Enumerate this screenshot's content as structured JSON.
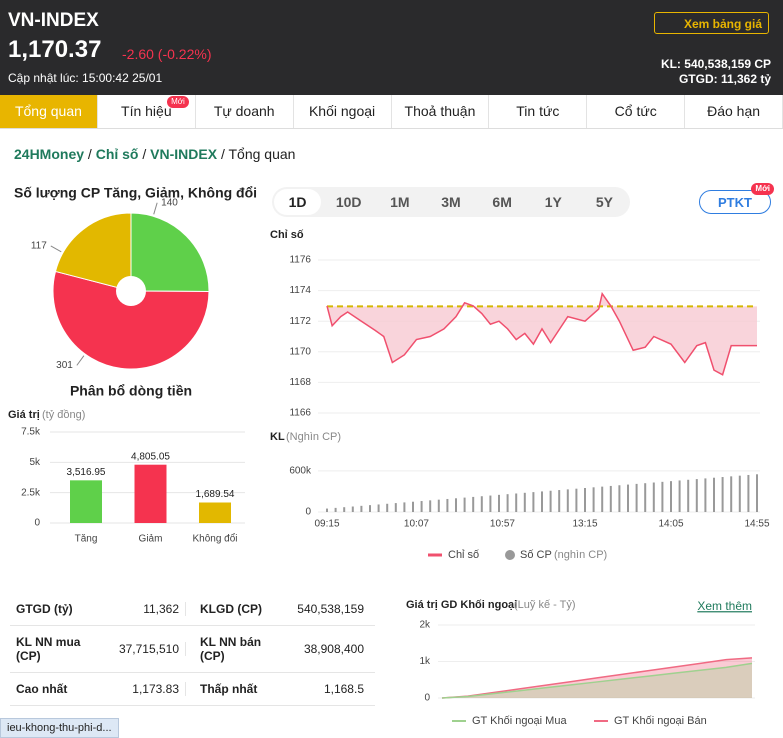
{
  "header": {
    "title": "VN-INDEX",
    "price": "1,170.37",
    "change": "-2.60 (-0.22%)",
    "updated": "Cập nhật lúc: 15:00:42 25/01",
    "button": "Xem bảng giá",
    "volume": "KL: 540,538,159 CP",
    "value": "GTGD: 11,362 tỷ"
  },
  "tabs": [
    "Tổng quan",
    "Tín hiệu",
    "Tự doanh",
    "Khối ngoại",
    "Thoả thuận",
    "Tin tức",
    "Cổ tức",
    "Đáo hạn"
  ],
  "badge": "Mới",
  "breadcrumb": [
    "24HMoney",
    "Chỉ số",
    "VN-INDEX",
    "Tổng quan"
  ],
  "pie": {
    "type": "pie",
    "title": "Số lượng CP Tăng, Giảm, Không đổi",
    "values": [
      140,
      301,
      117
    ],
    "colors": [
      "#5fd04a",
      "#f5334f",
      "#e2b800"
    ]
  },
  "flow": {
    "type": "bar",
    "title": "Phân bổ dòng tiền",
    "y_label": "Giá trị",
    "y_unit": "(tỷ đồng)",
    "categories": [
      "Tăng",
      "Giảm",
      "Không đổi"
    ],
    "values": [
      3516.95,
      4805.05,
      1689.54
    ],
    "value_labels": [
      "3,516.95",
      "4,805.05",
      "1,689.54"
    ],
    "colors": [
      "#5fd04a",
      "#f5334f",
      "#e2b800"
    ],
    "ylim": [
      0,
      7500
    ],
    "yticks": [
      0,
      {
        "value": 2500,
        "label": "2.5k"
      },
      {
        "value": 5000,
        "label": "5k"
      },
      {
        "value": 7500,
        "label": "7.5k"
      }
    ],
    "grid": true
  },
  "ranges": [
    "1D",
    "10D",
    "1M",
    "3M",
    "6M",
    "1Y",
    "5Y"
  ],
  "ptkt": "PTKT",
  "index_chart": {
    "type": "line",
    "y_label": "Chỉ số",
    "xlim": [
      0,
      250
    ],
    "xticks": [
      {
        "value": 0,
        "label": "09:15"
      },
      {
        "value": 52,
        "label": "10:07"
      },
      {
        "value": 102,
        "label": "10:57"
      },
      {
        "value": 150,
        "label": "13:15"
      },
      {
        "value": 200,
        "label": "14:05"
      },
      {
        "value": 250,
        "label": "14:55"
      }
    ],
    "ylim": [
      1166,
      1176
    ],
    "yticks": [
      1166,
      1168,
      1170,
      1172,
      1174,
      1176
    ],
    "grid": true,
    "reference": 1172.97,
    "reference_color": "#d4b800",
    "series": [
      {
        "name": "Chỉ số",
        "color": "#f0506e",
        "x": [
          0,
          3,
          8,
          12,
          20,
          28,
          33,
          38,
          45,
          52,
          60,
          68,
          75,
          80,
          85,
          90,
          95,
          100,
          105,
          110,
          115,
          120,
          125,
          130,
          140,
          150,
          158,
          160,
          165,
          170,
          178,
          185,
          190,
          200,
          208,
          215,
          220,
          225,
          230,
          235,
          250
        ],
        "values": [
          1173.0,
          1171.7,
          1172.3,
          1172.6,
          1172.0,
          1171.4,
          1171.0,
          1169.3,
          1169.8,
          1170.8,
          1171.0,
          1171.5,
          1172.3,
          1173.2,
          1173.0,
          1172.5,
          1171.8,
          1172.0,
          1171.5,
          1170.8,
          1171.2,
          1170.5,
          1171.5,
          1170.6,
          1172.3,
          1172.0,
          1172.8,
          1173.8,
          1173.0,
          1172.0,
          1170.1,
          1170.3,
          1171.0,
          1170.5,
          1169.3,
          1170.4,
          1170.6,
          1168.8,
          1168.5,
          1170.4,
          1170.4
        ]
      }
    ],
    "volume": {
      "label": "KL",
      "unit": "(Nghìn CP)",
      "name": "Số CP",
      "legend_unit": "(nghìn CP)",
      "color": "#999999",
      "x": [
        0,
        5,
        10,
        15,
        20,
        25,
        30,
        35,
        40,
        45,
        50,
        55,
        60,
        65,
        70,
        75,
        80,
        85,
        90,
        95,
        100,
        105,
        110,
        115,
        120,
        125,
        130,
        135,
        140,
        145,
        150,
        155,
        160,
        165,
        170,
        175,
        180,
        185,
        190,
        195,
        200,
        205,
        210,
        215,
        220,
        225,
        230,
        235,
        240,
        245,
        250
      ],
      "values": [
        50000,
        60000,
        70000,
        80000,
        90000,
        100000,
        110000,
        120000,
        130000,
        140000,
        150000,
        160000,
        170000,
        180000,
        190000,
        200000,
        210000,
        220000,
        230000,
        240000,
        250000,
        260000,
        270000,
        280000,
        290000,
        300000,
        310000,
        320000,
        330000,
        340000,
        350000,
        360000,
        370000,
        380000,
        390000,
        400000,
        410000,
        420000,
        430000,
        440000,
        450000,
        460000,
        470000,
        480000,
        490000,
        500000,
        510000,
        520000,
        530000,
        540000,
        550000
      ]
    },
    "ylim2": [
      0,
      700000
    ],
    "yticks2": [
      0,
      {
        "value": 600000,
        "label": "600k"
      }
    ]
  },
  "foreign": {
    "type": "area",
    "title": "Giá trị GD Khối ngoại",
    "unit": "(Luỹ kế - Tỷ)",
    "link": "Xem thêm",
    "ylim": [
      0,
      2000
    ],
    "yticks": [
      0,
      {
        "value": 1000,
        "label": "1k"
      },
      {
        "value": 2000,
        "label": "2k"
      }
    ],
    "grid": true,
    "series": [
      {
        "name": "GT Khối ngoại Mua",
        "color": "#9fd18f",
        "values": [
          0,
          40,
          120,
          200,
          280,
          360,
          440,
          520,
          600,
          680,
          760,
          840,
          950
        ]
      },
      {
        "name": "GT Khối ngoại Bán",
        "color": "#f06a83",
        "values": [
          0,
          50,
          150,
          250,
          350,
          450,
          550,
          650,
          750,
          850,
          950,
          1050,
          1100
        ]
      }
    ]
  },
  "table": {
    "rows": [
      [
        "GTGD (tỷ)",
        "11,362",
        "KLGD (CP)",
        "540,538,159"
      ],
      [
        "KL NN mua (CP)",
        "37,715,510",
        "KL NN bán (CP)",
        "38,908,400"
      ],
      [
        "Cao nhất",
        "1,173.83",
        "Thấp nhất",
        "1,168.5"
      ]
    ]
  },
  "status": "ieu-khong-thu-phi-d..."
}
